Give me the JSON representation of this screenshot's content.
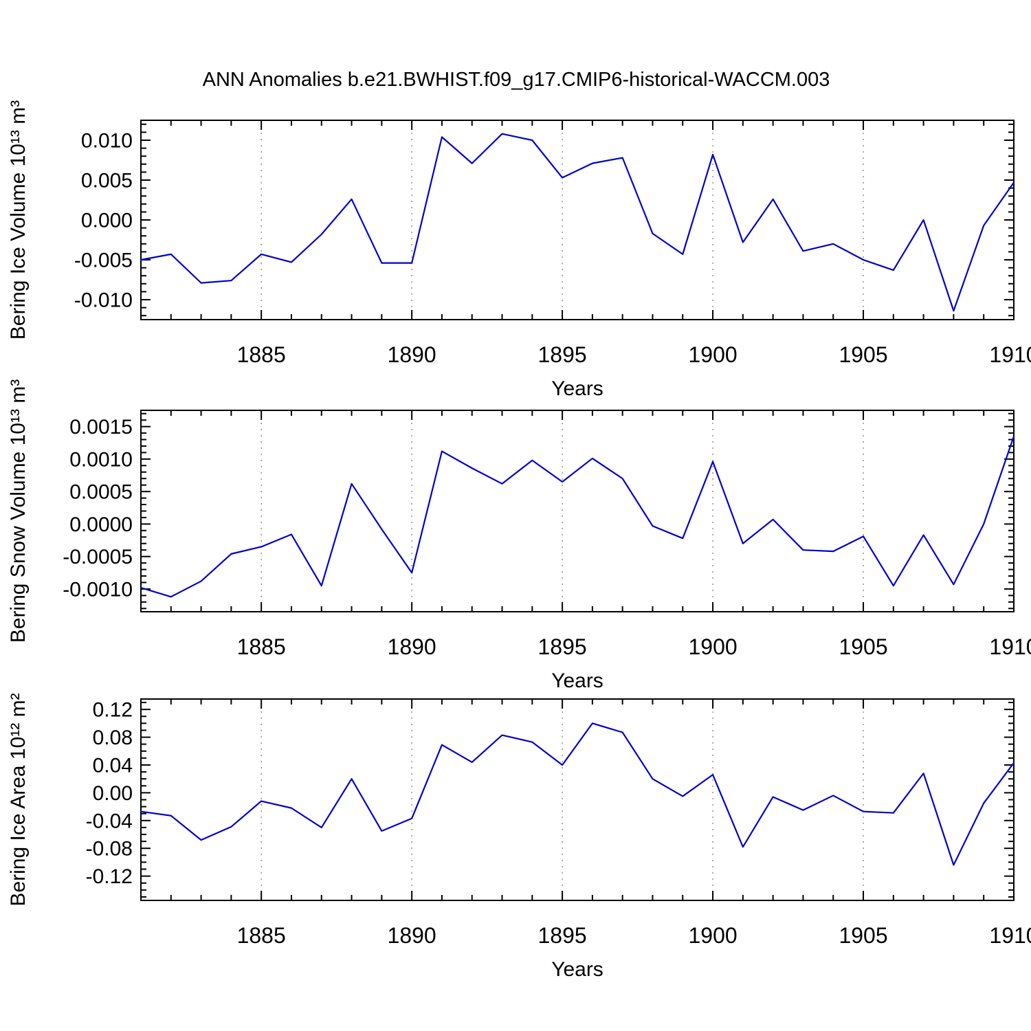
{
  "title": "ANN Anomalies b.e21.BWHIST.f09_g17.CMIP6-historical-WACCM.003",
  "line_color": "#0000cc",
  "chart_data": [
    {
      "type": "line",
      "title": "",
      "xlabel": "Years",
      "ylabel": "Bering Ice Volume 10¹³ m³",
      "legend": "none",
      "grid": "vertical-dashed",
      "grid_x": [
        1885,
        1890,
        1895,
        1900,
        1905
      ],
      "xlim": [
        1881,
        1910
      ],
      "ylim": [
        -0.0125,
        0.0125
      ],
      "xticks": [
        1885,
        1890,
        1895,
        1900,
        1905,
        1910
      ],
      "xminor_step": 1,
      "yticks": [
        0.01,
        0.005,
        0.0,
        -0.005,
        -0.01
      ],
      "ytick_labels": [
        "0.010",
        "0.005",
        "0.000",
        "-0.005",
        "-0.010"
      ],
      "yminor_step": 0.001,
      "x": [
        1881,
        1882,
        1883,
        1884,
        1885,
        1886,
        1887,
        1888,
        1889,
        1890,
        1891,
        1892,
        1893,
        1894,
        1895,
        1896,
        1897,
        1898,
        1899,
        1900,
        1901,
        1902,
        1903,
        1904,
        1905,
        1906,
        1907,
        1908,
        1909,
        1910
      ],
      "series": [
        {
          "name": "Bering Ice Volume anomaly",
          "values": [
            -0.005,
            -0.0043,
            -0.0079,
            -0.0076,
            -0.0043,
            -0.0053,
            -0.0018,
            0.0026,
            -0.0054,
            -0.0054,
            0.0104,
            0.0071,
            0.0108,
            0.01,
            0.0053,
            0.0071,
            0.0078,
            -0.0017,
            -0.0043,
            0.0082,
            -0.0028,
            0.0026,
            -0.0039,
            -0.003,
            -0.005,
            -0.0063,
            0.0,
            -0.0114,
            -0.0007,
            0.0047
          ]
        }
      ]
    },
    {
      "type": "line",
      "title": "",
      "xlabel": "Years",
      "ylabel": "Bering Snow Volume 10¹³ m³",
      "legend": "none",
      "grid": "vertical-dashed",
      "grid_x": [
        1885,
        1890,
        1895,
        1900,
        1905
      ],
      "xlim": [
        1881,
        1910
      ],
      "ylim": [
        -0.00135,
        0.00175
      ],
      "xticks": [
        1885,
        1890,
        1895,
        1900,
        1905,
        1910
      ],
      "xminor_step": 1,
      "yticks": [
        0.0015,
        0.001,
        0.0005,
        0.0,
        -0.0005,
        -0.001
      ],
      "ytick_labels": [
        "0.0015",
        "0.0010",
        "0.0005",
        "0.0000",
        "-0.0005",
        "-0.0010"
      ],
      "yminor_step": 0.0001,
      "x": [
        1881,
        1882,
        1883,
        1884,
        1885,
        1886,
        1887,
        1888,
        1889,
        1890,
        1891,
        1892,
        1893,
        1894,
        1895,
        1896,
        1897,
        1898,
        1899,
        1900,
        1901,
        1902,
        1903,
        1904,
        1905,
        1906,
        1907,
        1908,
        1909,
        1910
      ],
      "series": [
        {
          "name": "Bering Snow Volume anomaly",
          "values": [
            -0.00098,
            -0.00112,
            -0.00088,
            -0.00046,
            -0.00035,
            -0.00016,
            -0.00095,
            0.00062,
            -8e-05,
            -0.00075,
            0.00112,
            0.00086,
            0.00062,
            0.00098,
            0.00065,
            0.00101,
            0.0007,
            -3e-05,
            -0.00022,
            0.00096,
            -0.0003,
            7e-05,
            -0.0004,
            -0.00042,
            -0.00019,
            -0.00095,
            -0.00017,
            -0.00093,
            0.0,
            0.00135
          ]
        }
      ]
    },
    {
      "type": "line",
      "title": "",
      "xlabel": "Years",
      "ylabel": "Bering Ice Area 10¹² m²",
      "legend": "none",
      "grid": "vertical-dashed",
      "grid_x": [
        1885,
        1890,
        1895,
        1900,
        1905
      ],
      "xlim": [
        1881,
        1910
      ],
      "ylim": [
        -0.155,
        0.135
      ],
      "xticks": [
        1885,
        1890,
        1895,
        1900,
        1905,
        1910
      ],
      "xminor_step": 1,
      "yticks": [
        0.12,
        0.08,
        0.04,
        0.0,
        -0.04,
        -0.08,
        -0.12
      ],
      "ytick_labels": [
        "0.12",
        "0.08",
        "0.04",
        "0.00",
        "-0.04",
        "-0.08",
        "-0.12"
      ],
      "yminor_step": 0.01,
      "x": [
        1881,
        1882,
        1883,
        1884,
        1885,
        1886,
        1887,
        1888,
        1889,
        1890,
        1891,
        1892,
        1893,
        1894,
        1895,
        1896,
        1897,
        1898,
        1899,
        1900,
        1901,
        1902,
        1903,
        1904,
        1905,
        1906,
        1907,
        1908,
        1909,
        1910
      ],
      "series": [
        {
          "name": "Bering Ice Area anomaly",
          "values": [
            -0.027,
            -0.033,
            -0.068,
            -0.049,
            -0.012,
            -0.022,
            -0.05,
            0.02,
            -0.055,
            -0.037,
            0.069,
            0.044,
            0.083,
            0.073,
            0.04,
            0.1,
            0.087,
            0.02,
            -0.005,
            0.026,
            -0.078,
            -0.006,
            -0.025,
            -0.004,
            -0.027,
            -0.029,
            0.028,
            -0.104,
            -0.015,
            0.043
          ]
        }
      ]
    }
  ]
}
